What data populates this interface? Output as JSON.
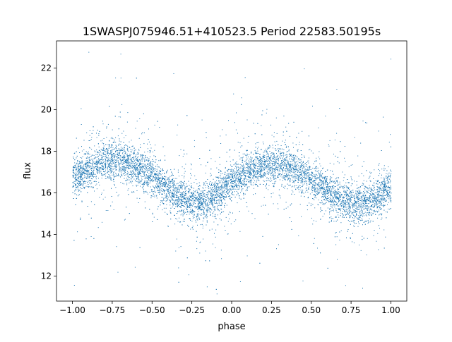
{
  "chart_data": {
    "type": "scatter",
    "title": "1SWASPJ075946.51+410523.5 Period 22583.50195s",
    "xlabel": "phase",
    "ylabel": "flux",
    "xlim": [
      -1.1,
      1.1
    ],
    "ylim": [
      10.8,
      23.3
    ],
    "x_ticks": [
      -1.0,
      -0.75,
      -0.5,
      -0.25,
      0.0,
      0.25,
      0.5,
      0.75,
      1.0
    ],
    "x_tick_labels": [
      "−1.00",
      "−0.75",
      "−0.50",
      "−0.25",
      "0.00",
      "0.25",
      "0.50",
      "0.75",
      "1.00"
    ],
    "y_ticks": [
      12,
      14,
      16,
      18,
      20,
      22
    ],
    "y_tick_labels": [
      "12",
      "14",
      "16",
      "18",
      "20",
      "22"
    ],
    "grid": false,
    "legend": "none",
    "point_color": "#1f77b4",
    "series": [
      {
        "x": [
          -1.0,
          -0.9,
          -0.8,
          -0.75,
          -0.7,
          -0.6,
          -0.5,
          -0.4,
          -0.3,
          -0.25,
          -0.2,
          -0.1,
          0.0,
          0.1,
          0.2,
          0.25,
          0.3,
          0.4,
          0.5,
          0.6,
          0.7,
          0.75,
          0.8,
          0.9,
          1.0
        ],
        "y": [
          16.7,
          17.2,
          17.5,
          17.6,
          17.6,
          17.3,
          16.8,
          16.2,
          15.7,
          15.5,
          15.5,
          15.9,
          16.5,
          17.0,
          17.3,
          17.4,
          17.4,
          17.1,
          16.6,
          16.0,
          15.6,
          15.5,
          15.5,
          15.8,
          16.4
        ]
      }
    ]
  }
}
